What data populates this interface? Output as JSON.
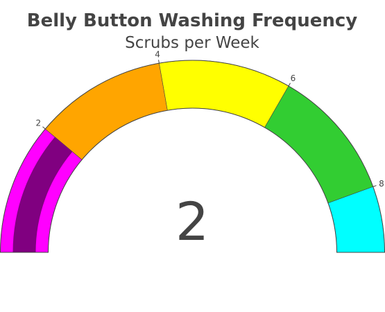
{
  "chart_data": {
    "type": "gauge",
    "title": "Belly Button Washing Frequency",
    "subtitle": "Scrubs per Week",
    "value": 2,
    "value_text": "2",
    "range": [
      0,
      9
    ],
    "ticks": [
      {
        "value": 2,
        "label": "2"
      },
      {
        "value": 4,
        "label": "4"
      },
      {
        "value": 6,
        "label": "6"
      },
      {
        "value": 8,
        "label": "8"
      }
    ],
    "steps": [
      {
        "from": 0,
        "to": 2,
        "color": "#ff00ff"
      },
      {
        "from": 2,
        "to": 4,
        "color": "#ffa500"
      },
      {
        "from": 4,
        "to": 6,
        "color": "#ffff00"
      },
      {
        "from": 6,
        "to": 8,
        "color": "#32cd32"
      },
      {
        "from": 8,
        "to": 9,
        "color": "#00ffff"
      }
    ],
    "bar": {
      "color": "#800080"
    }
  }
}
